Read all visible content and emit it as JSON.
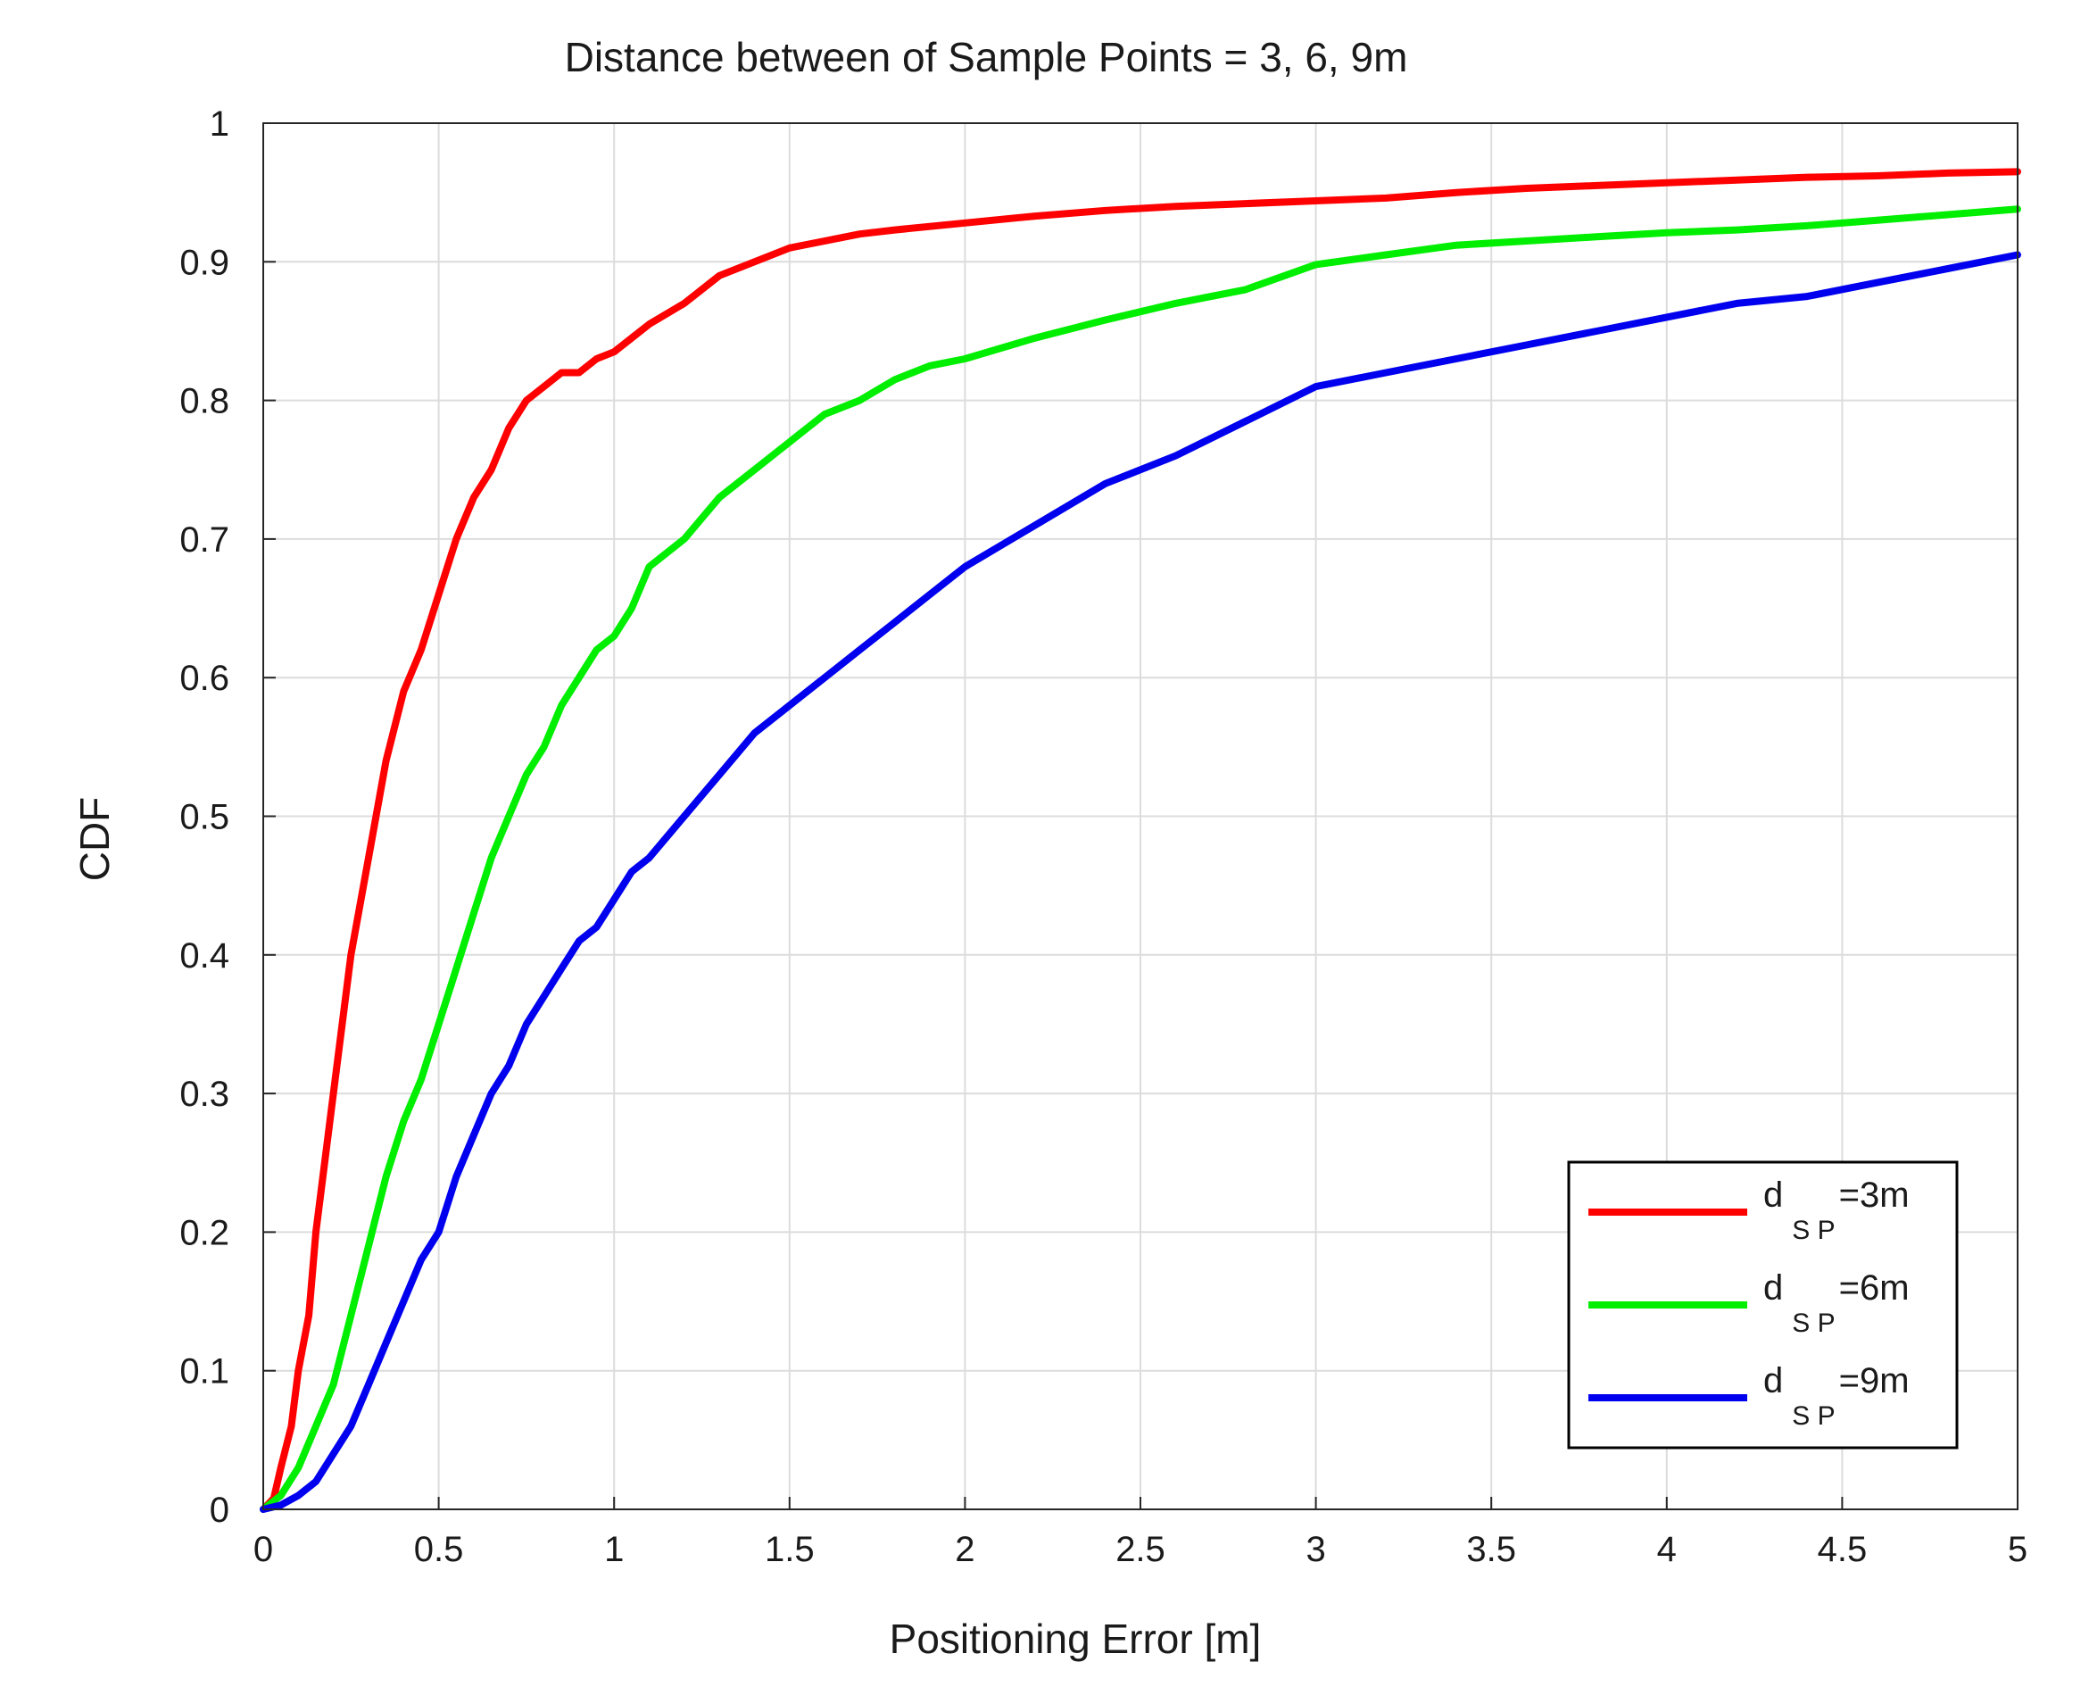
{
  "chart_data": {
    "type": "line",
    "title": "Distance between of Sample Points = 3, 6, 9m",
    "xlabel": "Positioning Error [m]",
    "ylabel": "CDF",
    "xlim": [
      0,
      5
    ],
    "ylim": [
      0,
      1
    ],
    "x_ticks": [
      "0",
      "0.5",
      "1",
      "1.5",
      "2",
      "2.5",
      "3",
      "3.5",
      "4",
      "4.5",
      "5"
    ],
    "y_ticks": [
      "0",
      "0.1",
      "0.2",
      "0.3",
      "0.4",
      "0.5",
      "0.6",
      "0.7",
      "0.8",
      "0.9",
      "1"
    ],
    "grid": true,
    "legend_position": "bottom-right",
    "series": [
      {
        "name": "d_SP=3m",
        "legend": {
          "main": "d",
          "sub": "S P",
          "suffix": "=3m"
        },
        "color": "#ff0000",
        "x": [
          0,
          0.03,
          0.05,
          0.08,
          0.1,
          0.13,
          0.15,
          0.2,
          0.25,
          0.3,
          0.35,
          0.4,
          0.45,
          0.5,
          0.55,
          0.6,
          0.65,
          0.7,
          0.75,
          0.8,
          0.85,
          0.9,
          0.95,
          1.0,
          1.05,
          1.1,
          1.2,
          1.3,
          1.4,
          1.5,
          1.6,
          1.7,
          1.8,
          2.0,
          2.2,
          2.4,
          2.6,
          2.8,
          3.0,
          3.2,
          3.4,
          3.6,
          3.8,
          4.0,
          4.2,
          4.4,
          4.6,
          4.8,
          5.0
        ],
        "y": [
          0,
          0.008,
          0.03,
          0.06,
          0.1,
          0.14,
          0.2,
          0.3,
          0.4,
          0.47,
          0.54,
          0.59,
          0.62,
          0.66,
          0.7,
          0.73,
          0.75,
          0.78,
          0.8,
          0.81,
          0.82,
          0.82,
          0.83,
          0.835,
          0.845,
          0.855,
          0.87,
          0.89,
          0.9,
          0.91,
          0.915,
          0.92,
          0.923,
          0.928,
          0.933,
          0.937,
          0.94,
          0.942,
          0.944,
          0.946,
          0.95,
          0.953,
          0.955,
          0.957,
          0.959,
          0.961,
          0.962,
          0.964,
          0.965
        ]
      },
      {
        "name": "d_SP=6m",
        "legend": {
          "main": "d",
          "sub": "S P",
          "suffix": "=6m"
        },
        "color": "#00ee00",
        "x": [
          0,
          0.05,
          0.1,
          0.15,
          0.2,
          0.25,
          0.3,
          0.35,
          0.4,
          0.45,
          0.5,
          0.55,
          0.6,
          0.65,
          0.7,
          0.75,
          0.8,
          0.85,
          0.9,
          0.95,
          1.0,
          1.05,
          1.1,
          1.2,
          1.3,
          1.4,
          1.5,
          1.6,
          1.7,
          1.8,
          1.9,
          2.0,
          2.2,
          2.4,
          2.6,
          2.8,
          3.0,
          3.2,
          3.4,
          3.6,
          3.8,
          4.0,
          4.2,
          4.4,
          4.6,
          4.8,
          5.0
        ],
        "y": [
          0,
          0.01,
          0.03,
          0.06,
          0.09,
          0.14,
          0.19,
          0.24,
          0.28,
          0.31,
          0.35,
          0.39,
          0.43,
          0.47,
          0.5,
          0.53,
          0.55,
          0.58,
          0.6,
          0.62,
          0.63,
          0.65,
          0.68,
          0.7,
          0.73,
          0.75,
          0.77,
          0.79,
          0.8,
          0.815,
          0.825,
          0.83,
          0.845,
          0.858,
          0.87,
          0.88,
          0.898,
          0.905,
          0.912,
          0.915,
          0.918,
          0.921,
          0.923,
          0.926,
          0.93,
          0.934,
          0.938
        ]
      },
      {
        "name": "d_SP=9m",
        "legend": {
          "main": "d",
          "sub": "S P",
          "suffix": "=9m"
        },
        "color": "#0000ee",
        "x": [
          0,
          0.05,
          0.1,
          0.15,
          0.2,
          0.25,
          0.3,
          0.35,
          0.4,
          0.45,
          0.5,
          0.55,
          0.6,
          0.65,
          0.7,
          0.75,
          0.8,
          0.85,
          0.9,
          0.95,
          1.0,
          1.05,
          1.1,
          1.2,
          1.3,
          1.4,
          1.5,
          1.6,
          1.7,
          1.8,
          1.9,
          2.0,
          2.2,
          2.4,
          2.6,
          2.8,
          3.0,
          3.2,
          3.4,
          3.6,
          3.8,
          4.0,
          4.2,
          4.4,
          4.6,
          4.8,
          5.0
        ],
        "y": [
          0,
          0.003,
          0.01,
          0.02,
          0.04,
          0.06,
          0.09,
          0.12,
          0.15,
          0.18,
          0.2,
          0.24,
          0.27,
          0.3,
          0.32,
          0.35,
          0.37,
          0.39,
          0.41,
          0.42,
          0.44,
          0.46,
          0.47,
          0.5,
          0.53,
          0.56,
          0.58,
          0.6,
          0.62,
          0.64,
          0.66,
          0.68,
          0.71,
          0.74,
          0.76,
          0.785,
          0.81,
          0.82,
          0.83,
          0.84,
          0.85,
          0.86,
          0.87,
          0.875,
          0.885,
          0.895,
          0.905
        ]
      }
    ]
  }
}
